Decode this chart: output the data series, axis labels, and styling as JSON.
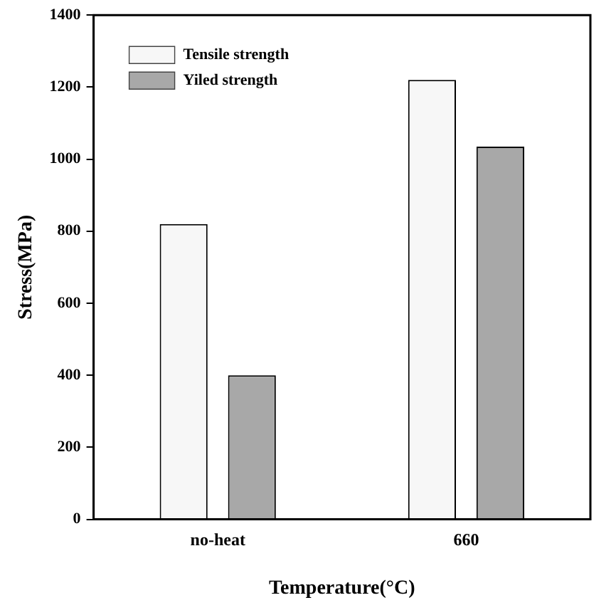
{
  "chart_data": {
    "type": "bar",
    "xlabel": "Temperature(°C)",
    "ylabel": "Stress(MPa)",
    "categories": [
      "no-heat",
      "660"
    ],
    "series": [
      {
        "name": "Tensile strength",
        "color": "#f7f7f7",
        "values": [
          820,
          1220
        ]
      },
      {
        "name": "Yiled strength",
        "color": "#a8a8a8",
        "values": [
          400,
          1035
        ]
      }
    ],
    "ylim": [
      0,
      1400
    ],
    "yticks": [
      0,
      200,
      400,
      600,
      800,
      1000,
      1200,
      1400
    ],
    "grid": false,
    "legend": "top left"
  }
}
